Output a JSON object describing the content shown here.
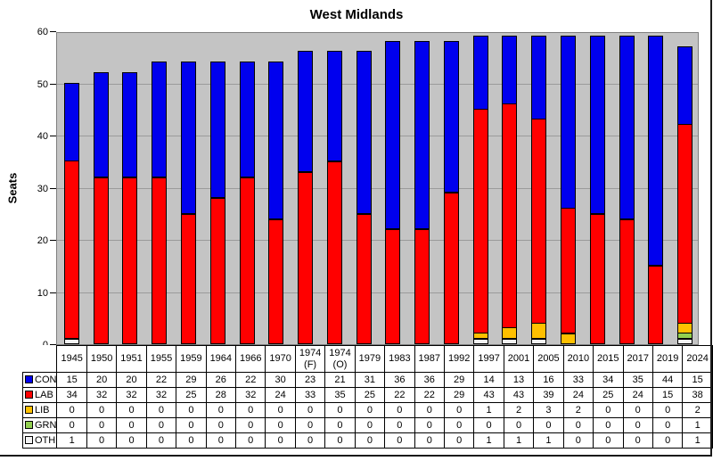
{
  "title": "West Midlands",
  "chart_data": {
    "type": "bar",
    "stacked": true,
    "title": "West Midlands",
    "xlabel": "",
    "ylabel": "Seats",
    "ylim": [
      0,
      60
    ],
    "yticks": [
      0,
      10,
      20,
      30,
      40,
      50,
      60
    ],
    "grid": true,
    "plot_bg": "#c4c4c4",
    "gridline_color": "#9b9b9b",
    "legend_position": "data-table-left-column",
    "categories": [
      "1945",
      "1950",
      "1951",
      "1955",
      "1959",
      "1964",
      "1966",
      "1970",
      "1974 (F)",
      "1974 (O)",
      "1979",
      "1983",
      "1987",
      "1992",
      "1997",
      "2001",
      "2005",
      "2010",
      "2015",
      "2017",
      "2019",
      "2024"
    ],
    "series": [
      {
        "name": "CON",
        "color": "#0000ee",
        "values": [
          15,
          20,
          20,
          22,
          29,
          26,
          22,
          30,
          23,
          21,
          31,
          36,
          36,
          29,
          14,
          13,
          16,
          33,
          34,
          35,
          44,
          15
        ]
      },
      {
        "name": "LAB",
        "color": "#ff0000",
        "values": [
          34,
          32,
          32,
          32,
          25,
          28,
          32,
          24,
          33,
          35,
          25,
          22,
          22,
          29,
          43,
          43,
          39,
          24,
          25,
          24,
          15,
          38
        ]
      },
      {
        "name": "LIB",
        "color": "#ffc000",
        "values": [
          0,
          0,
          0,
          0,
          0,
          0,
          0,
          0,
          0,
          0,
          0,
          0,
          0,
          0,
          1,
          2,
          3,
          2,
          0,
          0,
          0,
          2
        ]
      },
      {
        "name": "GRN",
        "color": "#92d050",
        "values": [
          0,
          0,
          0,
          0,
          0,
          0,
          0,
          0,
          0,
          0,
          0,
          0,
          0,
          0,
          0,
          0,
          0,
          0,
          0,
          0,
          0,
          1
        ]
      },
      {
        "name": "OTH",
        "color": "#f2f2f2",
        "values": [
          1,
          0,
          0,
          0,
          0,
          0,
          0,
          0,
          0,
          0,
          0,
          0,
          0,
          0,
          1,
          1,
          1,
          0,
          0,
          0,
          0,
          1
        ]
      }
    ],
    "stack_order_bottom_to_top": [
      "OTH",
      "GRN",
      "LIB",
      "LAB",
      "CON"
    ]
  }
}
